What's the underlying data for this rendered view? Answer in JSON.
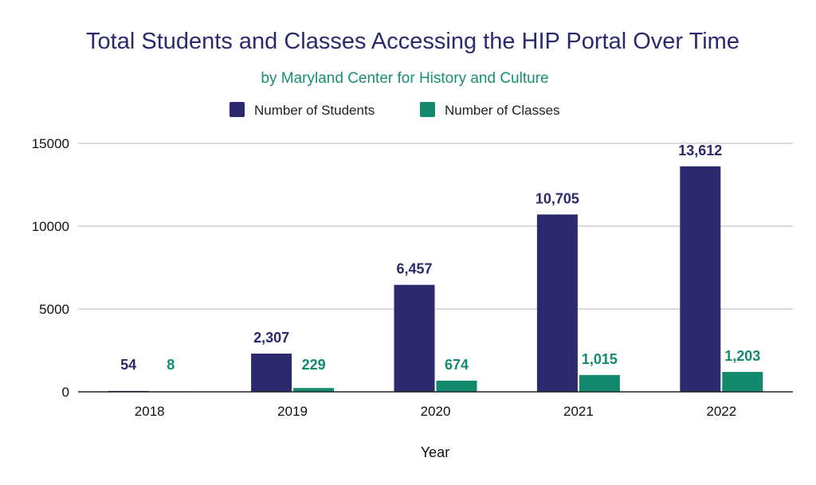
{
  "chart_data": {
    "type": "bar",
    "title": "Total Students and Classes Accessing the HIP Portal Over Time",
    "subtitle": "by Maryland Center for History and Culture",
    "xlabel": "Year",
    "ylabel": "",
    "categories": [
      "2018",
      "2019",
      "2020",
      "2021",
      "2022"
    ],
    "series": [
      {
        "name": "Number of Students",
        "color": "#2c2a6e",
        "values": [
          54,
          2307,
          6457,
          10705,
          13612
        ],
        "labels": [
          "54",
          "2,307",
          "6,457",
          "10,705",
          "13,612"
        ]
      },
      {
        "name": "Number of Classes",
        "color": "#138a70",
        "values": [
          8,
          229,
          674,
          1015,
          1203
        ],
        "labels": [
          "8",
          "229",
          "674",
          "1,015",
          "1,203"
        ]
      }
    ],
    "yticks": [
      "0",
      "5000",
      "10000",
      "15000"
    ],
    "ylim": [
      0,
      15000
    ],
    "grid": true,
    "legend": "top-center"
  }
}
